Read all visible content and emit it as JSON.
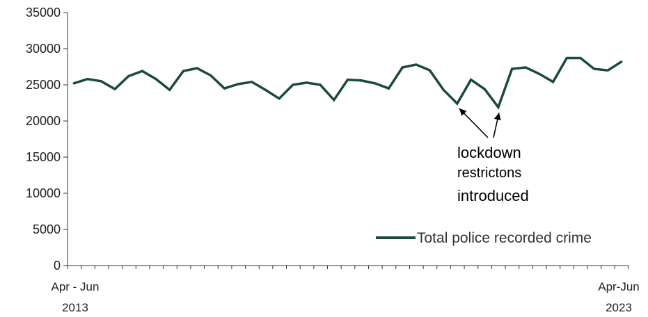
{
  "chart_data": {
    "type": "line",
    "title": "",
    "xlabel": "",
    "ylabel": "",
    "ylim": [
      0,
      35000
    ],
    "yticks": [
      0,
      5000,
      10000,
      15000,
      20000,
      25000,
      30000,
      35000
    ],
    "x_tick_labels": [
      {
        "line1": "Apr - Jun",
        "line2": "2013"
      },
      {
        "line1": "Apr-Jun",
        "line2": "2023"
      }
    ],
    "grid": false,
    "legend_position": "bottom-right",
    "series": [
      {
        "name": "Total police recorded crime",
        "color": "#1a4a3f",
        "values": [
          25200,
          25800,
          25500,
          24400,
          26200,
          26900,
          25800,
          24300,
          26900,
          27300,
          26300,
          24500,
          25100,
          25400,
          24300,
          23100,
          25000,
          25300,
          25000,
          22900,
          25700,
          25600,
          25200,
          24500,
          27400,
          27800,
          27000,
          24300,
          22400,
          25700,
          24400,
          21900,
          27200,
          27400,
          26500,
          25400,
          28700,
          28700,
          27200,
          27000,
          28200
        ]
      }
    ],
    "annotation": {
      "lines": [
        "lockdown",
        "restrictons",
        "introduced"
      ],
      "arrow_targets": [
        28,
        31
      ]
    }
  }
}
